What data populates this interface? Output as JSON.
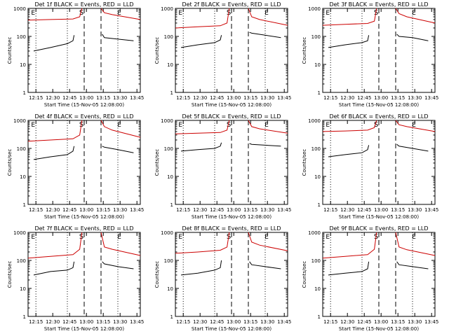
{
  "colors": {
    "events": "#000000",
    "lld": "#cc0000",
    "axes": "#000000"
  },
  "common": {
    "ylabel": "Counts/sec",
    "xlabel": "Start Time (15-Nov-05 12:08:00)",
    "yticks": [
      "1",
      "10",
      "100",
      "1000"
    ],
    "xticks": [
      "12:15",
      "12:30",
      "12:45",
      "13:00",
      "13:15",
      "13:30",
      "13:45"
    ],
    "markers": {
      "start": "S",
      "end": "E",
      "left": "E"
    }
  },
  "chart_data": [
    {
      "type": "line",
      "title": "Det 1f BLACK = Events, RED = LLD",
      "xlabel": "Start Time (15-Nov-05 12:08:00)",
      "ylabel": "Counts/sec",
      "x_range_min": [
        0,
        100
      ],
      "ylim": [
        1,
        1000
      ],
      "y_scale": "log",
      "markers_dashed_min": [
        50,
        65
      ],
      "markers_dotted_min": [
        7,
        35,
        80
      ],
      "series": [
        {
          "name": "LLD",
          "segments": [
            {
              "x": [
                0,
                20,
                40,
                46,
                48
              ],
              "y": [
                380,
                400,
                420,
                500,
                1000
              ]
            },
            {
              "x": [
                65,
                68,
                75,
                100
              ],
              "y": [
                1000,
                700,
                600,
                400
              ]
            }
          ]
        },
        {
          "name": "Events",
          "segments": [
            {
              "x": [
                5,
                20,
                35,
                40,
                41
              ],
              "y": [
                30,
                40,
                55,
                70,
                110
              ]
            },
            {
              "x": [
                66,
                68,
                80,
                94
              ],
              "y": [
                120,
                90,
                80,
                70
              ]
            }
          ]
        }
      ]
    },
    {
      "type": "line",
      "title": "Det 2f BLACK = Events, RED = LLD",
      "xlabel": "Start Time (15-Nov-05 12:08:00)",
      "ylabel": "Counts/sec",
      "x_range_min": [
        0,
        100
      ],
      "ylim": [
        1,
        1000
      ],
      "y_scale": "log",
      "markers_dashed_min": [
        50,
        65
      ],
      "markers_dotted_min": [
        7,
        35,
        80
      ],
      "series": [
        {
          "name": "LLD",
          "segments": [
            {
              "x": [
                0,
                20,
                40,
                46,
                48
              ],
              "y": [
                200,
                220,
                240,
                300,
                1000
              ]
            },
            {
              "x": [
                65,
                68,
                75,
                100
              ],
              "y": [
                1000,
                500,
                400,
                250
              ]
            }
          ]
        },
        {
          "name": "Events",
          "segments": [
            {
              "x": [
                5,
                20,
                35,
                40,
                41
              ],
              "y": [
                40,
                50,
                60,
                75,
                110
              ]
            },
            {
              "x": [
                66,
                68,
                80,
                94
              ],
              "y": [
                140,
                130,
                110,
                90
              ]
            }
          ]
        }
      ]
    },
    {
      "type": "line",
      "title": "Det 3f BLACK = Events, RED = LLD",
      "xlabel": "Start Time (15-Nov-05 12:08:00)",
      "ylabel": "Counts/sec",
      "x_range_min": [
        0,
        100
      ],
      "ylim": [
        1,
        1000
      ],
      "y_scale": "log",
      "markers_dashed_min": [
        50,
        65
      ],
      "markers_dotted_min": [
        7,
        35,
        80
      ],
      "series": [
        {
          "name": "LLD",
          "segments": [
            {
              "x": [
                0,
                20,
                40,
                46,
                48
              ],
              "y": [
                250,
                270,
                290,
                350,
                1000
              ]
            },
            {
              "x": [
                65,
                68,
                75,
                100
              ],
              "y": [
                1000,
                650,
                500,
                300
              ]
            }
          ]
        },
        {
          "name": "Events",
          "segments": [
            {
              "x": [
                5,
                20,
                35,
                40,
                41
              ],
              "y": [
                40,
                50,
                60,
                70,
                110
              ]
            },
            {
              "x": [
                66,
                68,
                80,
                94
              ],
              "y": [
                120,
                100,
                90,
                70
              ]
            }
          ]
        }
      ]
    },
    {
      "type": "line",
      "title": "Det 4f BLACK = Events, RED = LLD",
      "xlabel": "Start Time (15-Nov-05 12:08:00)",
      "ylabel": "Counts/sec",
      "x_range_min": [
        0,
        100
      ],
      "ylim": [
        1,
        1000
      ],
      "y_scale": "log",
      "markers_dashed_min": [
        50,
        65
      ],
      "markers_dotted_min": [
        7,
        35,
        80
      ],
      "series": [
        {
          "name": "LLD",
          "segments": [
            {
              "x": [
                0,
                20,
                40,
                46,
                48
              ],
              "y": [
                180,
                200,
                220,
                300,
                1000
              ]
            },
            {
              "x": [
                65,
                68,
                75,
                100
              ],
              "y": [
                1000,
                600,
                450,
                250
              ]
            }
          ]
        },
        {
          "name": "Events",
          "segments": [
            {
              "x": [
                5,
                20,
                35,
                40,
                41
              ],
              "y": [
                40,
                50,
                60,
                80,
                120
              ]
            },
            {
              "x": [
                66,
                68,
                80,
                94
              ],
              "y": [
                120,
                110,
                90,
                70
              ]
            }
          ]
        }
      ]
    },
    {
      "type": "line",
      "title": "Det 5f BLACK = Events, RED = LLD",
      "xlabel": "Start Time (15-Nov-05 12:08:00)",
      "ylabel": "Counts/sec",
      "x_range_min": [
        0,
        100
      ],
      "ylim": [
        1,
        1000
      ],
      "y_scale": "log",
      "markers_dashed_min": [
        50,
        65
      ],
      "markers_dotted_min": [
        7,
        35,
        80
      ],
      "series": [
        {
          "name": "LLD",
          "segments": [
            {
              "x": [
                0,
                20,
                40,
                46,
                48
              ],
              "y": [
                330,
                350,
                370,
                450,
                1000
              ]
            },
            {
              "x": [
                65,
                68,
                75,
                100
              ],
              "y": [
                1000,
                600,
                500,
                350
              ]
            }
          ]
        },
        {
          "name": "Events",
          "segments": [
            {
              "x": [
                5,
                20,
                35,
                40,
                41
              ],
              "y": [
                80,
                90,
                100,
                120,
                160
              ]
            },
            {
              "x": [
                66,
                68,
                80,
                94
              ],
              "y": [
                150,
                140,
                130,
                120
              ]
            }
          ]
        }
      ]
    },
    {
      "type": "line",
      "title": "Det 6f BLACK = Events, RED = LLD",
      "xlabel": "Start Time (15-Nov-05 12:08:00)",
      "ylabel": "Counts/sec",
      "x_range_min": [
        0,
        100
      ],
      "ylim": [
        1,
        1000
      ],
      "y_scale": "log",
      "markers_dashed_min": [
        50,
        65
      ],
      "markers_dotted_min": [
        7,
        35,
        80
      ],
      "series": [
        {
          "name": "LLD",
          "segments": [
            {
              "x": [
                0,
                20,
                40,
                46,
                48
              ],
              "y": [
                400,
                420,
                450,
                550,
                1000
              ]
            },
            {
              "x": [
                65,
                68,
                75,
                100
              ],
              "y": [
                1000,
                700,
                600,
                400
              ]
            }
          ]
        },
        {
          "name": "Events",
          "segments": [
            {
              "x": [
                5,
                20,
                35,
                40,
                41
              ],
              "y": [
                50,
                60,
                70,
                90,
                130
              ]
            },
            {
              "x": [
                66,
                68,
                80,
                94
              ],
              "y": [
                140,
                120,
                100,
                80
              ]
            }
          ]
        }
      ]
    },
    {
      "type": "line",
      "title": "Det 7f BLACK = Events, RED = LLD",
      "xlabel": "Start Time (15-Nov-05 12:08:00)",
      "ylabel": "Counts/sec",
      "x_range_min": [
        0,
        100
      ],
      "ylim": [
        1,
        1000
      ],
      "y_scale": "log",
      "markers_dashed_min": [
        50,
        65
      ],
      "markers_dotted_min": [
        7,
        35,
        80
      ],
      "series": [
        {
          "name": "LLD",
          "segments": [
            {
              "x": [
                0,
                20,
                40,
                46,
                48
              ],
              "y": [
                120,
                140,
                160,
                250,
                1000
              ]
            },
            {
              "x": [
                65,
                68,
                75,
                100
              ],
              "y": [
                1000,
                300,
                250,
                150
              ]
            }
          ]
        },
        {
          "name": "Events",
          "segments": [
            {
              "x": [
                5,
                20,
                35,
                40,
                41
              ],
              "y": [
                30,
                40,
                45,
                55,
                90
              ]
            },
            {
              "x": [
                66,
                68,
                80,
                94
              ],
              "y": [
                90,
                75,
                60,
                50
              ]
            }
          ]
        }
      ]
    },
    {
      "type": "line",
      "title": "Det 8f BLACK = Events, RED = LLD",
      "xlabel": "Start Time (15-Nov-05 12:08:00)",
      "ylabel": "Counts/sec",
      "x_range_min": [
        0,
        100
      ],
      "ylim": [
        1,
        1000
      ],
      "y_scale": "log",
      "markers_dashed_min": [
        50,
        65
      ],
      "markers_dotted_min": [
        7,
        35,
        80
      ],
      "series": [
        {
          "name": "LLD",
          "segments": [
            {
              "x": [
                0,
                20,
                40,
                46,
                48
              ],
              "y": [
                180,
                200,
                230,
                300,
                1000
              ]
            },
            {
              "x": [
                65,
                68,
                75,
                100
              ],
              "y": [
                1000,
                450,
                350,
                220
              ]
            }
          ]
        },
        {
          "name": "Events",
          "segments": [
            {
              "x": [
                5,
                20,
                35,
                40,
                41
              ],
              "y": [
                30,
                35,
                45,
                55,
                100
              ]
            },
            {
              "x": [
                66,
                68,
                80,
                94
              ],
              "y": [
                90,
                70,
                60,
                50
              ]
            }
          ]
        }
      ]
    },
    {
      "type": "line",
      "title": "Det 9f BLACK = Events, RED = LLD",
      "xlabel": "Start Time (15-Nov-05 12:08:00)",
      "ylabel": "Counts/sec",
      "x_range_min": [
        0,
        100
      ],
      "ylim": [
        1,
        1000
      ],
      "y_scale": "log",
      "markers_dashed_min": [
        50,
        65
      ],
      "markers_dotted_min": [
        7,
        35,
        80
      ],
      "series": [
        {
          "name": "LLD",
          "segments": [
            {
              "x": [
                0,
                20,
                40,
                46,
                48
              ],
              "y": [
                120,
                140,
                160,
                250,
                1000
              ]
            },
            {
              "x": [
                65,
                68,
                75,
                100
              ],
              "y": [
                1000,
                300,
                240,
                150
              ]
            }
          ]
        },
        {
          "name": "Events",
          "segments": [
            {
              "x": [
                5,
                20,
                35,
                40,
                41
              ],
              "y": [
                30,
                35,
                40,
                50,
                90
              ]
            },
            {
              "x": [
                66,
                68,
                80,
                94
              ],
              "y": [
                90,
                70,
                60,
                50
              ]
            }
          ]
        }
      ]
    }
  ]
}
